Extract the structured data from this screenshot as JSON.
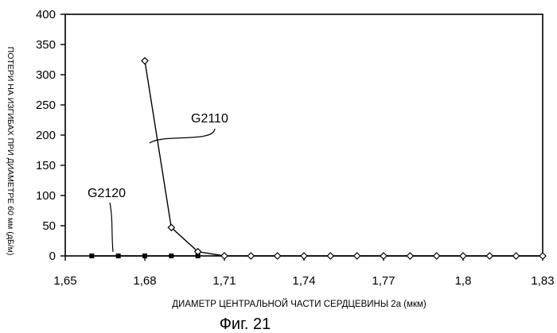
{
  "chart_data": {
    "type": "line",
    "title": "",
    "xlabel": "ДИАМЕТР ЦЕНТРАЛЬНОЙ ЧАСТИ  СЕРДЦЕВИНЫ 2а (мкм)",
    "ylabel": "ПОТЕРИ НА ИЗГИБАХ ПРИ ДИАМЕТРЕ 60 мм (дБ/м)",
    "caption": "Фиг. 21",
    "xlim": [
      1.65,
      1.83
    ],
    "ylim": [
      0,
      400
    ],
    "x_ticks": [
      "1,65",
      "1,68",
      "1,71",
      "1,74",
      "1,77",
      "1,8",
      "1,83"
    ],
    "y_ticks": [
      "0",
      "50",
      "100",
      "150",
      "200",
      "250",
      "300",
      "350",
      "400"
    ],
    "grid": false,
    "series": [
      {
        "name": "G2110",
        "marker": "diamond-open",
        "x": [
          1.68,
          1.69,
          1.7,
          1.71,
          1.72,
          1.73,
          1.74,
          1.75,
          1.76,
          1.77,
          1.78,
          1.79,
          1.8,
          1.81,
          1.82,
          1.83
        ],
        "y": [
          323,
          47,
          7,
          0,
          0,
          0,
          0,
          0,
          0,
          0,
          0,
          0,
          0,
          0,
          0,
          0
        ]
      },
      {
        "name": "G2120",
        "marker": "square-filled",
        "x": [
          1.66,
          1.67,
          1.68,
          1.69,
          1.7
        ],
        "y": [
          0,
          0,
          0,
          0,
          0
        ]
      }
    ]
  }
}
